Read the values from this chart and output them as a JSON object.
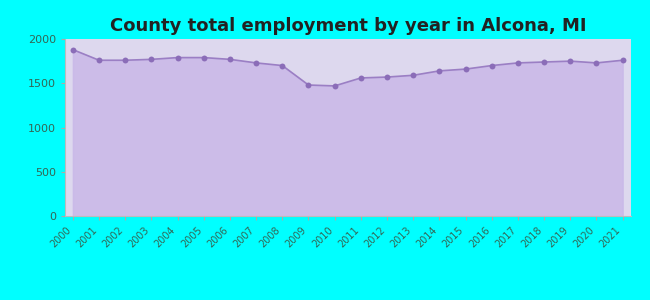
{
  "title": "County total employment by year in Alcona, MI",
  "title_fontsize": 13,
  "title_fontweight": "bold",
  "title_color": "#222222",
  "years": [
    2000,
    2001,
    2002,
    2003,
    2004,
    2005,
    2006,
    2007,
    2008,
    2009,
    2010,
    2011,
    2012,
    2013,
    2014,
    2015,
    2016,
    2017,
    2018,
    2019,
    2020,
    2021
  ],
  "values": [
    1880,
    1760,
    1760,
    1770,
    1790,
    1790,
    1770,
    1730,
    1700,
    1480,
    1470,
    1560,
    1570,
    1590,
    1640,
    1660,
    1700,
    1730,
    1740,
    1750,
    1730,
    1760
  ],
  "ylim": [
    0,
    2000
  ],
  "yticks": [
    0,
    500,
    1000,
    1500,
    2000
  ],
  "background_color": "#00FFFF",
  "plot_bg_color": "#ddd8ee",
  "line_color": "#9b7fc4",
  "fill_color": "#c9b8e8",
  "fill_alpha": 0.85,
  "dot_color": "#8b6db8",
  "dot_size": 18,
  "line_width": 1.2,
  "tick_label_color": "#336655",
  "tick_label_fontsize": 7,
  "ytick_label_color": "#336655",
  "ytick_label_fontsize": 8
}
